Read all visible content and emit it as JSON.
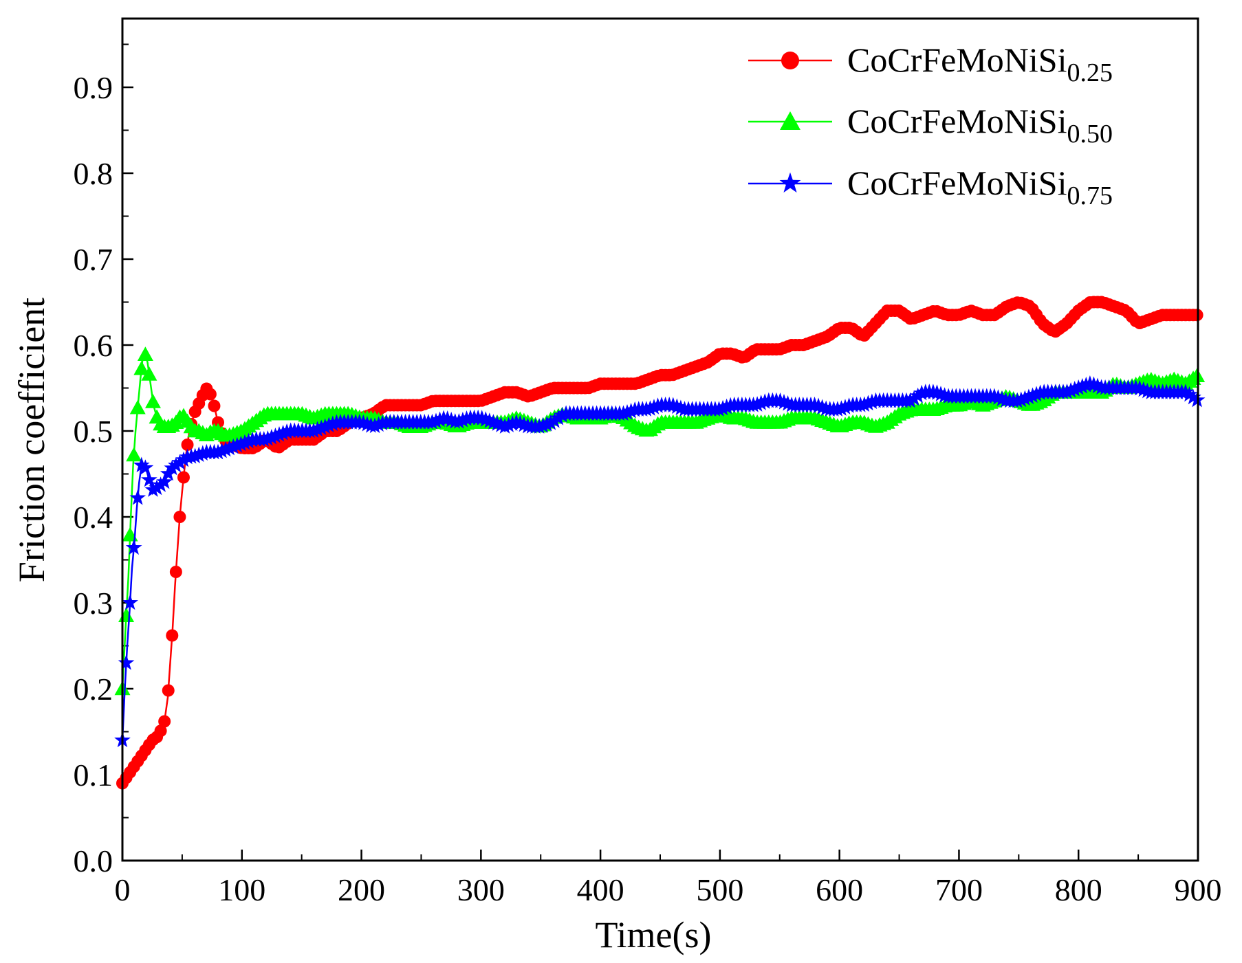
{
  "chart_data": {
    "type": "line",
    "xlabel": "Time(s)",
    "ylabel": "Friction coefficient",
    "xlim": [
      0,
      900
    ],
    "ylim": [
      0,
      0.98
    ],
    "x_ticks": [
      "0",
      "100",
      "200",
      "300",
      "400",
      "500",
      "600",
      "700",
      "800",
      "900"
    ],
    "y_ticks": [
      "0.0",
      "0.1",
      "0.2",
      "0.3",
      "0.4",
      "0.5",
      "0.6",
      "0.7",
      "0.8",
      "0.9"
    ],
    "legend_position": "top-right",
    "series": [
      {
        "name": "CoCrFeMoNiSi",
        "subscript": "0.25",
        "color": "#ff0000",
        "marker": "circle",
        "points": [
          [
            0,
            0.09
          ],
          [
            5,
            0.1
          ],
          [
            10,
            0.11
          ],
          [
            15,
            0.12
          ],
          [
            20,
            0.13
          ],
          [
            25,
            0.14
          ],
          [
            30,
            0.145
          ],
          [
            35,
            0.16
          ],
          [
            38,
            0.19
          ],
          [
            40,
            0.23
          ],
          [
            42,
            0.27
          ],
          [
            44,
            0.32
          ],
          [
            46,
            0.36
          ],
          [
            48,
            0.4
          ],
          [
            50,
            0.43
          ],
          [
            53,
            0.47
          ],
          [
            56,
            0.5
          ],
          [
            60,
            0.52
          ],
          [
            65,
            0.535
          ],
          [
            70,
            0.55
          ],
          [
            75,
            0.54
          ],
          [
            80,
            0.51
          ],
          [
            85,
            0.49
          ],
          [
            90,
            0.485
          ],
          [
            100,
            0.48
          ],
          [
            110,
            0.48
          ],
          [
            120,
            0.49
          ],
          [
            130,
            0.48
          ],
          [
            140,
            0.49
          ],
          [
            150,
            0.49
          ],
          [
            160,
            0.49
          ],
          [
            170,
            0.5
          ],
          [
            180,
            0.5
          ],
          [
            190,
            0.51
          ],
          [
            200,
            0.515
          ],
          [
            210,
            0.52
          ],
          [
            220,
            0.53
          ],
          [
            230,
            0.53
          ],
          [
            240,
            0.53
          ],
          [
            250,
            0.53
          ],
          [
            260,
            0.535
          ],
          [
            270,
            0.535
          ],
          [
            280,
            0.535
          ],
          [
            290,
            0.535
          ],
          [
            300,
            0.535
          ],
          [
            310,
            0.54
          ],
          [
            320,
            0.545
          ],
          [
            330,
            0.545
          ],
          [
            340,
            0.54
          ],
          [
            350,
            0.545
          ],
          [
            360,
            0.55
          ],
          [
            370,
            0.55
          ],
          [
            380,
            0.55
          ],
          [
            390,
            0.55
          ],
          [
            400,
            0.555
          ],
          [
            410,
            0.555
          ],
          [
            420,
            0.555
          ],
          [
            430,
            0.555
          ],
          [
            440,
            0.56
          ],
          [
            450,
            0.565
          ],
          [
            460,
            0.565
          ],
          [
            470,
            0.57
          ],
          [
            480,
            0.575
          ],
          [
            490,
            0.58
          ],
          [
            500,
            0.59
          ],
          [
            510,
            0.59
          ],
          [
            520,
            0.585
          ],
          [
            530,
            0.595
          ],
          [
            540,
            0.595
          ],
          [
            550,
            0.595
          ],
          [
            560,
            0.6
          ],
          [
            570,
            0.6
          ],
          [
            580,
            0.605
          ],
          [
            590,
            0.61
          ],
          [
            600,
            0.62
          ],
          [
            610,
            0.62
          ],
          [
            620,
            0.61
          ],
          [
            630,
            0.625
          ],
          [
            640,
            0.64
          ],
          [
            650,
            0.64
          ],
          [
            660,
            0.63
          ],
          [
            670,
            0.635
          ],
          [
            680,
            0.64
          ],
          [
            690,
            0.635
          ],
          [
            700,
            0.635
          ],
          [
            710,
            0.64
          ],
          [
            720,
            0.635
          ],
          [
            730,
            0.635
          ],
          [
            740,
            0.645
          ],
          [
            750,
            0.65
          ],
          [
            760,
            0.645
          ],
          [
            770,
            0.625
          ],
          [
            780,
            0.615
          ],
          [
            790,
            0.625
          ],
          [
            800,
            0.64
          ],
          [
            810,
            0.65
          ],
          [
            820,
            0.65
          ],
          [
            830,
            0.645
          ],
          [
            840,
            0.64
          ],
          [
            850,
            0.625
          ],
          [
            860,
            0.63
          ],
          [
            870,
            0.635
          ],
          [
            880,
            0.635
          ],
          [
            890,
            0.635
          ],
          [
            900,
            0.635
          ]
        ]
      },
      {
        "name": "CoCrFeMoNiSi",
        "subscript": "0.50",
        "color": "#00ff00",
        "marker": "triangle",
        "points": [
          [
            0,
            0.2
          ],
          [
            3,
            0.28
          ],
          [
            5,
            0.33
          ],
          [
            7,
            0.4
          ],
          [
            9,
            0.46
          ],
          [
            11,
            0.5
          ],
          [
            13,
            0.53
          ],
          [
            15,
            0.56
          ],
          [
            17,
            0.585
          ],
          [
            19,
            0.59
          ],
          [
            21,
            0.58
          ],
          [
            23,
            0.56
          ],
          [
            26,
            0.53
          ],
          [
            30,
            0.51
          ],
          [
            35,
            0.505
          ],
          [
            40,
            0.505
          ],
          [
            45,
            0.51
          ],
          [
            50,
            0.52
          ],
          [
            55,
            0.51
          ],
          [
            60,
            0.5
          ],
          [
            65,
            0.5
          ],
          [
            70,
            0.495
          ],
          [
            75,
            0.5
          ],
          [
            80,
            0.5
          ],
          [
            85,
            0.495
          ],
          [
            90,
            0.495
          ],
          [
            100,
            0.5
          ],
          [
            110,
            0.51
          ],
          [
            120,
            0.52
          ],
          [
            130,
            0.52
          ],
          [
            140,
            0.52
          ],
          [
            150,
            0.52
          ],
          [
            160,
            0.515
          ],
          [
            170,
            0.52
          ],
          [
            180,
            0.52
          ],
          [
            190,
            0.52
          ],
          [
            200,
            0.515
          ],
          [
            210,
            0.515
          ],
          [
            220,
            0.51
          ],
          [
            230,
            0.51
          ],
          [
            240,
            0.505
          ],
          [
            250,
            0.505
          ],
          [
            260,
            0.51
          ],
          [
            270,
            0.51
          ],
          [
            280,
            0.505
          ],
          [
            290,
            0.51
          ],
          [
            300,
            0.51
          ],
          [
            310,
            0.51
          ],
          [
            320,
            0.51
          ],
          [
            330,
            0.515
          ],
          [
            340,
            0.51
          ],
          [
            350,
            0.505
          ],
          [
            360,
            0.515
          ],
          [
            370,
            0.52
          ],
          [
            380,
            0.515
          ],
          [
            390,
            0.515
          ],
          [
            400,
            0.515
          ],
          [
            410,
            0.52
          ],
          [
            420,
            0.515
          ],
          [
            430,
            0.505
          ],
          [
            440,
            0.5
          ],
          [
            450,
            0.51
          ],
          [
            460,
            0.51
          ],
          [
            470,
            0.51
          ],
          [
            480,
            0.51
          ],
          [
            490,
            0.515
          ],
          [
            500,
            0.52
          ],
          [
            510,
            0.515
          ],
          [
            520,
            0.515
          ],
          [
            530,
            0.51
          ],
          [
            540,
            0.51
          ],
          [
            550,
            0.51
          ],
          [
            560,
            0.515
          ],
          [
            570,
            0.515
          ],
          [
            580,
            0.515
          ],
          [
            590,
            0.51
          ],
          [
            600,
            0.505
          ],
          [
            610,
            0.51
          ],
          [
            620,
            0.51
          ],
          [
            630,
            0.505
          ],
          [
            640,
            0.51
          ],
          [
            650,
            0.52
          ],
          [
            660,
            0.525
          ],
          [
            670,
            0.525
          ],
          [
            680,
            0.525
          ],
          [
            690,
            0.53
          ],
          [
            700,
            0.53
          ],
          [
            710,
            0.535
          ],
          [
            720,
            0.53
          ],
          [
            730,
            0.535
          ],
          [
            740,
            0.54
          ],
          [
            750,
            0.535
          ],
          [
            760,
            0.53
          ],
          [
            770,
            0.535
          ],
          [
            780,
            0.545
          ],
          [
            790,
            0.545
          ],
          [
            800,
            0.545
          ],
          [
            810,
            0.545
          ],
          [
            820,
            0.545
          ],
          [
            830,
            0.555
          ],
          [
            840,
            0.55
          ],
          [
            850,
            0.555
          ],
          [
            860,
            0.56
          ],
          [
            870,
            0.555
          ],
          [
            880,
            0.56
          ],
          [
            890,
            0.555
          ],
          [
            900,
            0.565
          ]
        ]
      },
      {
        "name": "CoCrFeMoNiSi",
        "subscript": "0.75",
        "color": "#0000ff",
        "marker": "star",
        "points": [
          [
            0,
            0.14
          ],
          [
            2,
            0.2
          ],
          [
            4,
            0.25
          ],
          [
            6,
            0.29
          ],
          [
            8,
            0.34
          ],
          [
            10,
            0.37
          ],
          [
            12,
            0.41
          ],
          [
            14,
            0.44
          ],
          [
            16,
            0.46
          ],
          [
            18,
            0.46
          ],
          [
            20,
            0.455
          ],
          [
            23,
            0.44
          ],
          [
            26,
            0.43
          ],
          [
            30,
            0.435
          ],
          [
            35,
            0.44
          ],
          [
            40,
            0.455
          ],
          [
            45,
            0.46
          ],
          [
            50,
            0.465
          ],
          [
            55,
            0.47
          ],
          [
            60,
            0.47
          ],
          [
            70,
            0.475
          ],
          [
            80,
            0.475
          ],
          [
            90,
            0.48
          ],
          [
            100,
            0.485
          ],
          [
            110,
            0.49
          ],
          [
            120,
            0.49
          ],
          [
            130,
            0.495
          ],
          [
            140,
            0.5
          ],
          [
            150,
            0.5
          ],
          [
            160,
            0.5
          ],
          [
            170,
            0.505
          ],
          [
            180,
            0.51
          ],
          [
            190,
            0.51
          ],
          [
            200,
            0.51
          ],
          [
            210,
            0.505
          ],
          [
            220,
            0.51
          ],
          [
            230,
            0.51
          ],
          [
            240,
            0.51
          ],
          [
            250,
            0.51
          ],
          [
            260,
            0.51
          ],
          [
            270,
            0.515
          ],
          [
            280,
            0.51
          ],
          [
            290,
            0.515
          ],
          [
            300,
            0.515
          ],
          [
            310,
            0.51
          ],
          [
            320,
            0.505
          ],
          [
            330,
            0.51
          ],
          [
            340,
            0.505
          ],
          [
            350,
            0.505
          ],
          [
            360,
            0.51
          ],
          [
            370,
            0.52
          ],
          [
            380,
            0.52
          ],
          [
            390,
            0.52
          ],
          [
            400,
            0.52
          ],
          [
            410,
            0.52
          ],
          [
            420,
            0.52
          ],
          [
            430,
            0.525
          ],
          [
            440,
            0.525
          ],
          [
            450,
            0.53
          ],
          [
            460,
            0.53
          ],
          [
            470,
            0.525
          ],
          [
            480,
            0.525
          ],
          [
            490,
            0.525
          ],
          [
            500,
            0.525
          ],
          [
            510,
            0.53
          ],
          [
            520,
            0.53
          ],
          [
            530,
            0.53
          ],
          [
            540,
            0.535
          ],
          [
            550,
            0.535
          ],
          [
            560,
            0.53
          ],
          [
            570,
            0.53
          ],
          [
            580,
            0.53
          ],
          [
            590,
            0.525
          ],
          [
            600,
            0.525
          ],
          [
            610,
            0.53
          ],
          [
            620,
            0.53
          ],
          [
            630,
            0.535
          ],
          [
            640,
            0.535
          ],
          [
            650,
            0.535
          ],
          [
            660,
            0.535
          ],
          [
            670,
            0.545
          ],
          [
            680,
            0.545
          ],
          [
            690,
            0.54
          ],
          [
            700,
            0.54
          ],
          [
            710,
            0.54
          ],
          [
            720,
            0.54
          ],
          [
            730,
            0.54
          ],
          [
            740,
            0.535
          ],
          [
            750,
            0.535
          ],
          [
            760,
            0.54
          ],
          [
            770,
            0.545
          ],
          [
            780,
            0.545
          ],
          [
            790,
            0.545
          ],
          [
            800,
            0.55
          ],
          [
            810,
            0.555
          ],
          [
            820,
            0.55
          ],
          [
            830,
            0.55
          ],
          [
            840,
            0.55
          ],
          [
            850,
            0.55
          ],
          [
            860,
            0.545
          ],
          [
            870,
            0.545
          ],
          [
            880,
            0.545
          ],
          [
            890,
            0.545
          ],
          [
            900,
            0.535
          ]
        ]
      }
    ]
  }
}
